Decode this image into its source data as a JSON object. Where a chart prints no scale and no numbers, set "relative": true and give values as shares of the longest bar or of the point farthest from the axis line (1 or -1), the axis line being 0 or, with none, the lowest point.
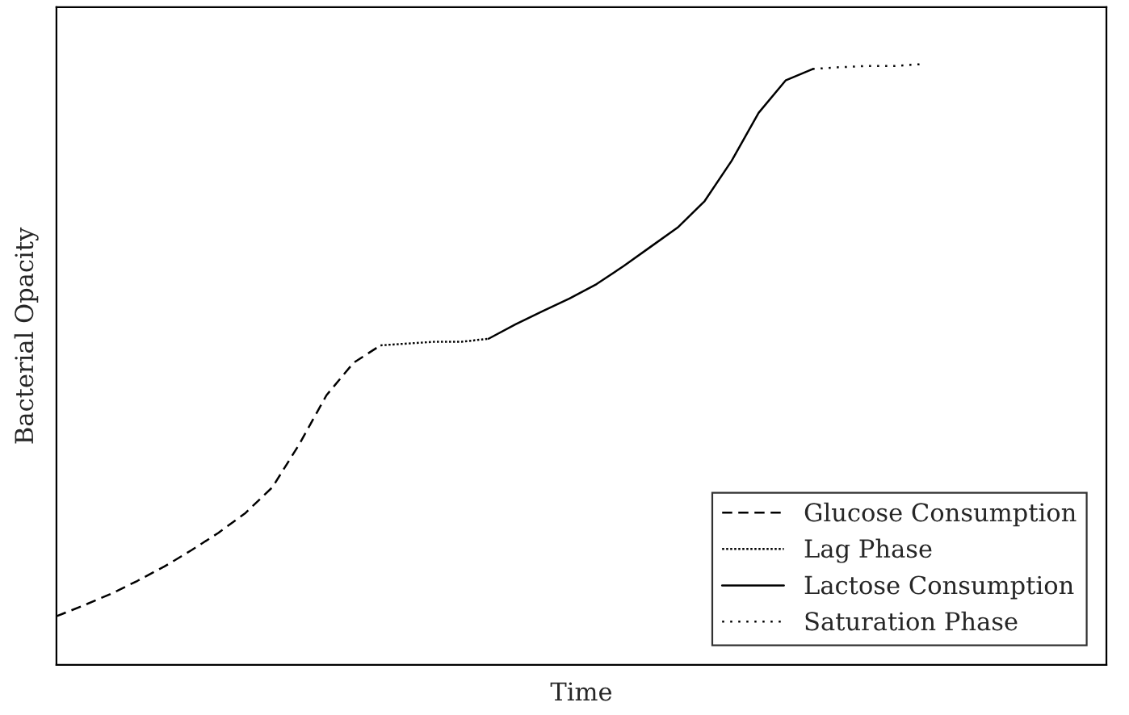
{
  "chart_data": {
    "type": "line",
    "xlabel": "Time",
    "ylabel": "Bacterial Opacity",
    "relative": true,
    "legend": "bottom right",
    "grid": false,
    "categories": [
      null,
      null,
      null,
      null,
      null,
      null,
      null,
      null,
      null,
      null,
      null,
      null,
      null,
      null,
      null,
      null,
      null,
      null,
      null,
      null,
      null,
      null,
      null,
      null,
      null,
      null,
      null,
      null,
      null,
      null,
      null,
      null,
      null
    ],
    "series": [
      {
        "name": "Glucose Consumption",
        "color": "#000000",
        "line_style": "dashed",
        "values": [
          0.081,
          0.099,
          0.118,
          0.14,
          0.164,
          0.191,
          0.22,
          0.253,
          0.296,
          0.368,
          0.449,
          0.503,
          0.532,
          null,
          null,
          null,
          null,
          null,
          null,
          null,
          null,
          null,
          null,
          null,
          null,
          null,
          null,
          null,
          null,
          null,
          null,
          null,
          null
        ]
      },
      {
        "name": "Lag Phase",
        "color": "#000000",
        "line_style": "dotted",
        "values": [
          null,
          null,
          null,
          null,
          null,
          null,
          null,
          null,
          null,
          null,
          null,
          null,
          0.532,
          0.535,
          0.538,
          0.538,
          0.543,
          null,
          null,
          null,
          null,
          null,
          null,
          null,
          null,
          null,
          null,
          null,
          null,
          null,
          null,
          null,
          null
        ]
      },
      {
        "name": "Lactose Consumption",
        "color": "#000000",
        "line_style": "solid",
        "values": [
          null,
          null,
          null,
          null,
          null,
          null,
          null,
          null,
          null,
          null,
          null,
          null,
          null,
          null,
          null,
          null,
          0.543,
          0.567,
          0.589,
          0.61,
          0.634,
          0.664,
          0.696,
          0.728,
          0.772,
          0.839,
          0.919,
          0.973,
          0.992,
          null,
          null,
          null,
          null
        ]
      },
      {
        "name": "Saturation Phase",
        "color": "#000000",
        "line_style": "loosely dotted",
        "values": [
          null,
          null,
          null,
          null,
          null,
          null,
          null,
          null,
          null,
          null,
          null,
          null,
          null,
          null,
          null,
          null,
          null,
          null,
          null,
          null,
          null,
          null,
          null,
          null,
          null,
          null,
          null,
          null,
          0.992,
          0.995,
          0.997,
          0.997,
          1.0
        ]
      }
    ]
  }
}
